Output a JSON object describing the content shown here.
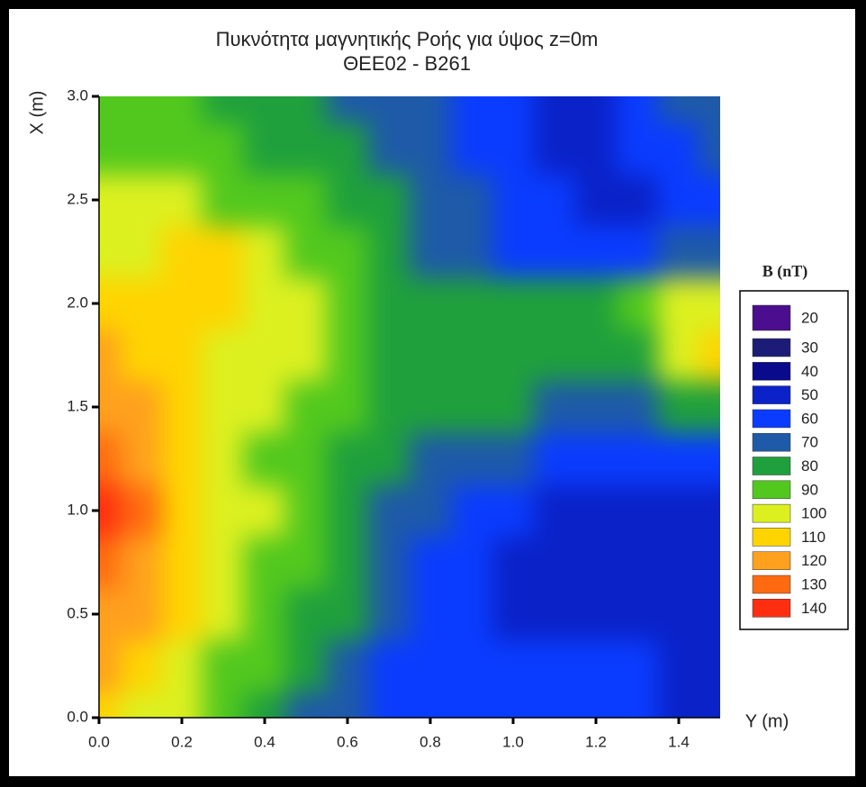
{
  "chart_data": {
    "type": "contour",
    "title": "Πυκνότητα μαγνητικής Ροής για ύψος z=0m",
    "subtitle": "ΘΕΕ02 - B261",
    "x_label": "Y (m)",
    "y_label": "X (m)",
    "legend_title": "B (nT)",
    "x": [
      0,
      0.1,
      0.2,
      0.3,
      0.4,
      0.5,
      0.6,
      0.7,
      0.8,
      0.9,
      1.0,
      1.1,
      1.2,
      1.3,
      1.4,
      1.5
    ],
    "y": [
      0,
      0.25,
      0.5,
      0.75,
      1.0,
      1.25,
      1.5,
      1.75,
      2.0,
      2.25,
      2.5,
      2.75,
      3.0
    ],
    "z": [
      [
        112,
        105,
        100,
        92,
        85,
        78,
        70,
        65,
        62,
        60,
        60,
        60,
        60,
        60,
        58,
        58
      ],
      [
        120,
        112,
        105,
        98,
        90,
        82,
        75,
        68,
        62,
        60,
        60,
        60,
        60,
        60,
        58,
        58
      ],
      [
        128,
        120,
        110,
        102,
        95,
        88,
        80,
        72,
        65,
        60,
        58,
        58,
        58,
        58,
        58,
        58
      ],
      [
        135,
        125,
        115,
        105,
        98,
        90,
        82,
        75,
        68,
        62,
        58,
        55,
        55,
        55,
        55,
        55
      ],
      [
        140,
        130,
        118,
        108,
        100,
        92,
        85,
        78,
        72,
        65,
        60,
        58,
        55,
        52,
        50,
        55
      ],
      [
        132,
        125,
        115,
        105,
        98,
        92,
        85,
        80,
        75,
        72,
        70,
        65,
        60,
        60,
        62,
        65
      ],
      [
        125,
        120,
        112,
        105,
        100,
        95,
        90,
        85,
        82,
        80,
        80,
        78,
        75,
        75,
        80,
        85
      ],
      [
        120,
        115,
        110,
        108,
        105,
        100,
        92,
        88,
        88,
        88,
        88,
        85,
        82,
        88,
        100,
        110
      ],
      [
        115,
        112,
        112,
        112,
        108,
        100,
        92,
        85,
        85,
        88,
        88,
        85,
        85,
        90,
        100,
        105
      ],
      [
        108,
        108,
        110,
        110,
        105,
        98,
        92,
        85,
        78,
        72,
        68,
        65,
        62,
        65,
        70,
        72
      ],
      [
        105,
        105,
        100,
        98,
        95,
        90,
        85,
        80,
        75,
        70,
        65,
        60,
        55,
        58,
        60,
        60
      ],
      [
        95,
        95,
        95,
        90,
        88,
        85,
        80,
        75,
        72,
        68,
        62,
        55,
        55,
        60,
        65,
        70
      ],
      [
        90,
        90,
        90,
        85,
        80,
        80,
        75,
        70,
        70,
        65,
        60,
        55,
        55,
        60,
        70,
        75
      ]
    ],
    "levels": [
      20,
      30,
      40,
      50,
      60,
      70,
      80,
      90,
      100,
      110,
      120,
      130,
      140
    ],
    "colors": [
      "#4b0e8e",
      "#1c1c78",
      "#0a0a8c",
      "#0a22c8",
      "#0a3cff",
      "#1e5aa8",
      "#1fa03c",
      "#52c81e",
      "#dcf020",
      "#ffd400",
      "#ffa01e",
      "#ff6a10",
      "#ff2e10"
    ],
    "xlim": [
      0,
      1.5
    ],
    "ylim": [
      0,
      3.0
    ],
    "xticks": [
      {
        "value": 0,
        "label": "0.0"
      },
      0.2,
      0.4,
      0.6,
      0.8,
      {
        "value": 1,
        "label": "1.0"
      },
      1.2,
      1.4
    ],
    "yticks": [
      {
        "value": 0,
        "label": "0.0"
      },
      0.5,
      {
        "value": 1,
        "label": "1.0"
      },
      1.5,
      {
        "value": 2,
        "label": "2.0"
      },
      2.5,
      {
        "value": 3,
        "label": "3.0"
      }
    ]
  }
}
